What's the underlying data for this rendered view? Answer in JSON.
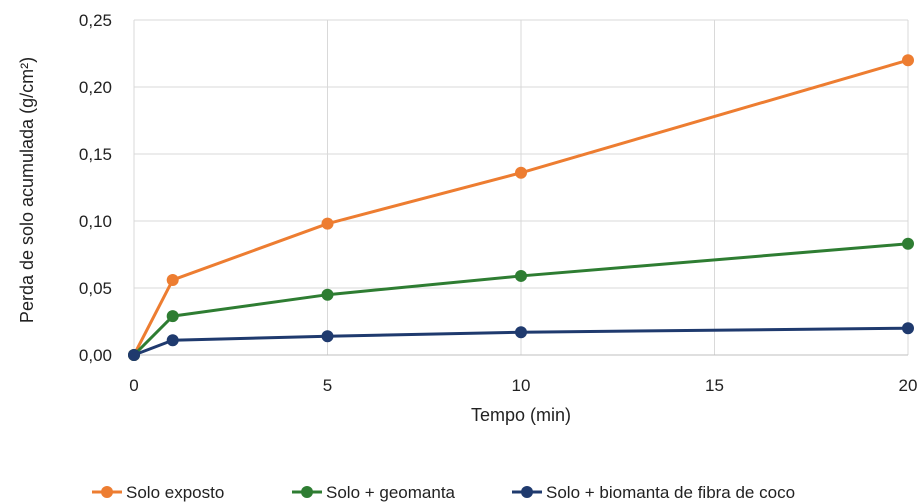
{
  "chart_data": {
    "type": "line",
    "title": "",
    "xlabel": "Tempo (min)",
    "ylabel": "Perda de solo acumulada (g/cm²)",
    "xlim": [
      0,
      20
    ],
    "ylim": [
      0,
      0.25
    ],
    "xticks": [
      0,
      5,
      10,
      15,
      20
    ],
    "xtick_labels": [
      "0",
      "5",
      "10",
      "15",
      "20"
    ],
    "yticks": [
      0,
      0.05,
      0.1,
      0.15,
      0.2,
      0.25
    ],
    "ytick_labels": [
      "0,00",
      "0,05",
      "0,10",
      "0,15",
      "0,20",
      "0,25"
    ],
    "grid": "vertical and horizontal",
    "legend_position": "bottom",
    "x": [
      0,
      1,
      5,
      10,
      20
    ],
    "series": [
      {
        "name": "Solo exposto",
        "color": "#ED7D31",
        "values": [
          0,
          0.056,
          0.098,
          0.136,
          0.22
        ]
      },
      {
        "name": "Solo + geomanta",
        "color": "#2E7D32",
        "values": [
          0,
          0.029,
          0.045,
          0.059,
          0.083
        ]
      },
      {
        "name": "Solo + biomanta de fibra de coco",
        "color": "#1F3A6E",
        "values": [
          0,
          0.011,
          0.014,
          0.017,
          0.02
        ]
      }
    ]
  }
}
